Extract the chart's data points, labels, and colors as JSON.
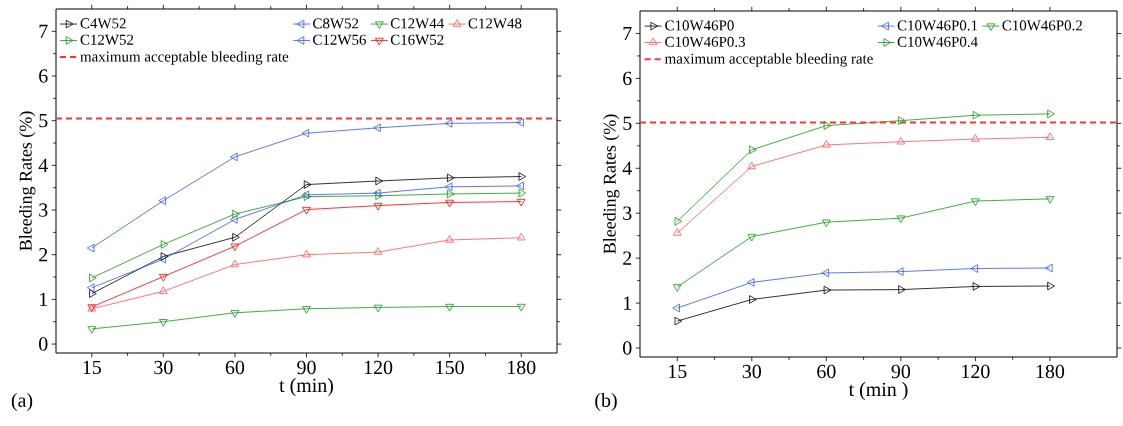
{
  "chart_data": [
    {
      "type": "line",
      "categories": [
        "15",
        "30",
        "60",
        "90",
        "120",
        "150",
        "180"
      ],
      "xlabel": "t (min)",
      "ylabel": "Bleeding Rates (%)",
      "ylim": [
        -0.2,
        7.5
      ],
      "yticks": [
        0,
        1,
        2,
        3,
        4,
        5,
        6,
        7
      ],
      "legend": "top",
      "marker": "triangle",
      "line_style": "solid",
      "annotations": [
        "(a)"
      ],
      "series": [
        {
          "name": "C4W52",
          "color": "#000000",
          "values": [
            1.13,
            1.96,
            2.39,
            3.57,
            3.65,
            3.72,
            3.75
          ]
        },
        {
          "name": "C8W52",
          "color": "#3355ff",
          "values": [
            1.26,
            1.9,
            2.79,
            3.34,
            3.38,
            3.52,
            3.54
          ]
        },
        {
          "name": "C12W44",
          "color": "#119911",
          "values": [
            0.34,
            0.5,
            0.7,
            0.79,
            0.82,
            0.84,
            0.84
          ]
        },
        {
          "name": "C12W48",
          "color": "#ff5555",
          "values": [
            0.79,
            1.18,
            1.78,
            2.0,
            2.06,
            2.33,
            2.38
          ]
        },
        {
          "name": "C12W52",
          "color": "#119911",
          "values": [
            1.48,
            2.23,
            2.91,
            3.3,
            3.32,
            3.36,
            3.38
          ]
        },
        {
          "name": "C12W56",
          "color": "#3355ff",
          "values": [
            2.15,
            3.21,
            4.19,
            4.72,
            4.84,
            4.94,
            4.96
          ]
        },
        {
          "name": "C16W52",
          "color": "#ff0000",
          "values": [
            0.83,
            1.51,
            2.19,
            3.01,
            3.1,
            3.17,
            3.19
          ]
        }
      ],
      "ref_lines": [
        {
          "axis": "y",
          "value": 5.05,
          "label": "maximum acceptable bleeding rate",
          "color": "#ff3333",
          "line_style": "dashed"
        }
      ]
    },
    {
      "type": "line",
      "categories": [
        "15",
        "30",
        "60",
        "90",
        "120",
        "180"
      ],
      "xlabel": "t (min )",
      "ylabel": "Bleeding Rates (%)",
      "ylim": [
        -0.2,
        7.5
      ],
      "yticks": [
        0,
        1,
        2,
        3,
        4,
        5,
        6,
        7
      ],
      "legend": "top",
      "marker": "triangle",
      "line_style": "solid",
      "annotations": [
        "(b)"
      ],
      "series": [
        {
          "name": "C10W46P0",
          "color": "#000000",
          "values": [
            0.6,
            1.08,
            1.29,
            1.3,
            1.37,
            1.38
          ]
        },
        {
          "name": "C10W46P0.1",
          "color": "#3355ff",
          "values": [
            0.89,
            1.46,
            1.67,
            1.7,
            1.77,
            1.78
          ]
        },
        {
          "name": "C10W46P0.2",
          "color": "#119911",
          "values": [
            1.36,
            2.48,
            2.8,
            2.89,
            3.27,
            3.32
          ]
        },
        {
          "name": "C10W46P0.3",
          "color": "#ff5555",
          "values": [
            2.56,
            4.04,
            4.52,
            4.59,
            4.65,
            4.69
          ]
        },
        {
          "name": "C10W46P0.4",
          "color": "#119911",
          "values": [
            2.82,
            4.41,
            4.95,
            5.06,
            5.18,
            5.21
          ]
        }
      ],
      "ref_lines": [
        {
          "axis": "y",
          "value": 5.02,
          "label": "maximum acceptable bleeding rate",
          "color": "#ff3333",
          "line_style": "dashed"
        }
      ]
    }
  ]
}
